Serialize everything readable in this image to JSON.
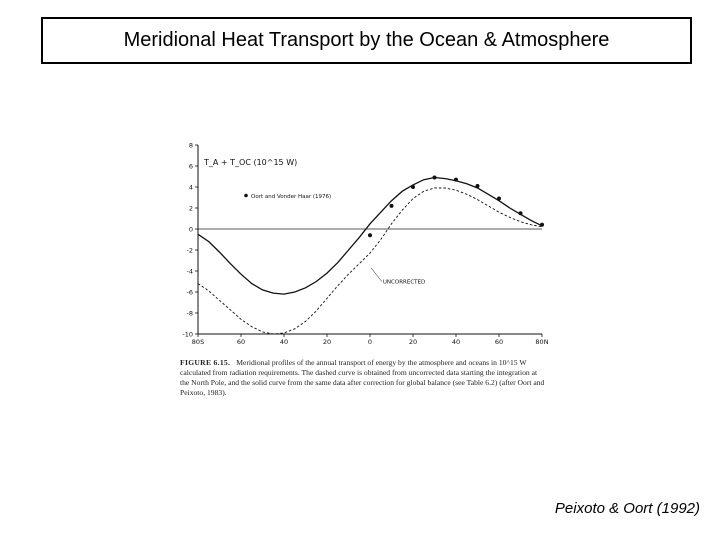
{
  "slide": {
    "title": "Meridional Heat Transport by the Ocean & Atmosphere",
    "citation": "Peixoto & Oort (1992)"
  },
  "caption": {
    "label": "FIGURE 6.15.",
    "text": "Meridional profiles of the annual transport of energy by the atmosphere and oceans in 10^15 W calculated from radiation requirements. The dashed curve is obtained from uncorrected data starting the integration at the North Pole, and the solid curve from the same data after correction for global balance (see Table 6.2) (after Oort and Peixoto, 1983)."
  },
  "chart_data": {
    "type": "line",
    "ylabel": "T_A + T_OC (10^15 W)",
    "legend": "Oort and Vonder Haar (1976)",
    "legend_position": "top-left",
    "annotation": "UNCORRECTED",
    "xlim": [
      -80,
      80
    ],
    "ylim": [
      -10,
      8
    ],
    "x_ticks": [
      -80,
      -60,
      -40,
      -20,
      0,
      20,
      40,
      60,
      80
    ],
    "x_tick_labels": [
      "80S",
      "60",
      "40",
      "20",
      "0",
      "20",
      "40",
      "60",
      "80N"
    ],
    "y_ticks": [
      -10,
      -8,
      -6,
      -4,
      -2,
      0,
      2,
      4,
      6,
      8
    ],
    "y_tick_labels": [
      "-10",
      "-8",
      "-6",
      "-4",
      "-2",
      "0",
      "2",
      "4",
      "6",
      "8"
    ],
    "series": [
      {
        "style": "solid",
        "x": [
          -80,
          -75,
          -70,
          -65,
          -60,
          -55,
          -50,
          -45,
          -40,
          -35,
          -30,
          -25,
          -20,
          -15,
          -10,
          -5,
          0,
          5,
          10,
          15,
          20,
          25,
          30,
          35,
          40,
          45,
          50,
          55,
          60,
          65,
          70,
          75,
          80
        ],
        "y": [
          -0.5,
          -1.2,
          -2.2,
          -3.3,
          -4.3,
          -5.2,
          -5.8,
          -6.1,
          -6.2,
          -6.0,
          -5.6,
          -5.0,
          -4.2,
          -3.2,
          -2.0,
          -0.8,
          0.5,
          1.6,
          2.7,
          3.6,
          4.2,
          4.7,
          4.9,
          4.8,
          4.6,
          4.3,
          3.9,
          3.3,
          2.7,
          2.0,
          1.4,
          0.8,
          0.3
        ]
      },
      {
        "style": "dashed",
        "x": [
          -80,
          -75,
          -70,
          -65,
          -60,
          -55,
          -50,
          -45,
          -40,
          -35,
          -30,
          -25,
          -20,
          -15,
          -10,
          -5,
          0,
          5,
          10,
          15,
          20,
          25,
          30,
          35,
          40,
          45,
          50,
          55,
          60,
          65,
          70,
          75,
          80
        ],
        "y": [
          -5.2,
          -5.9,
          -6.8,
          -7.7,
          -8.6,
          -9.3,
          -9.8,
          -10.0,
          -9.9,
          -9.5,
          -8.8,
          -7.8,
          -6.6,
          -5.4,
          -4.3,
          -3.3,
          -2.3,
          -1.0,
          0.5,
          1.8,
          2.9,
          3.6,
          3.9,
          3.9,
          3.7,
          3.3,
          2.8,
          2.2,
          1.6,
          1.1,
          0.7,
          0.4,
          0.2
        ]
      }
    ],
    "markers": {
      "x": [
        0,
        10,
        20,
        30,
        40,
        50,
        60,
        70,
        80
      ],
      "y": [
        -0.6,
        2.2,
        4.0,
        4.9,
        4.7,
        4.1,
        2.9,
        1.5,
        0.4
      ]
    }
  }
}
